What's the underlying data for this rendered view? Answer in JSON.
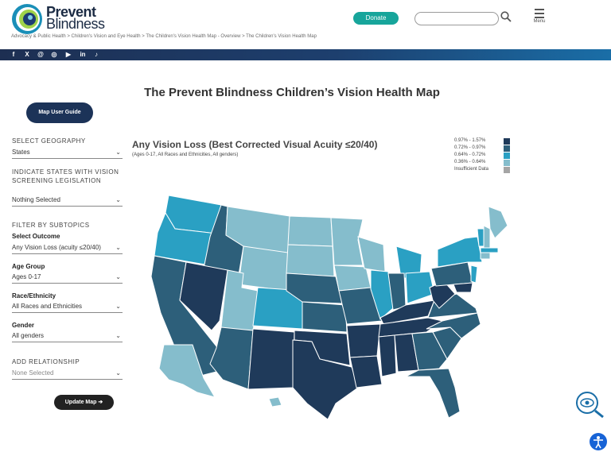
{
  "header": {
    "logo_line1": "Prevent",
    "logo_line2": "Blindness",
    "breadcrumb": "Advocacy & Public Health > Children's Vision and Eye Health > The Children's Vision Health Map - Overview > The Children's Vision Health Map",
    "donate_label": "Donate",
    "search_placeholder": "",
    "menu_label": "Menu"
  },
  "social": {
    "icons": [
      "facebook-icon",
      "x-icon",
      "threads-icon",
      "instagram-icon",
      "youtube-icon",
      "linkedin-icon",
      "tiktok-icon"
    ],
    "glyphs": [
      "f",
      "X",
      "@",
      "◎",
      "▶",
      "in",
      "♪"
    ]
  },
  "page_title": "The Prevent Blindness Children’s Vision Health Map",
  "sidebar": {
    "guide_button": "Map User Guide",
    "geography_label": "SELECT GEOGRAPHY",
    "geography_value": "States",
    "legislation_label_line1": "INDICATE STATES WITH VISION",
    "legislation_label_line2": "SCREENING LEGISLATION",
    "legislation_value": "Nothing Selected",
    "subtopics_label": "FILTER BY SUBTOPICS",
    "outcome_label": "Select Outcome",
    "outcome_value": "Any Vision Loss (acuity ≤20/40)",
    "age_label": "Age Group",
    "age_value": "Ages 0-17",
    "race_label": "Race/Ethnicity",
    "race_value": "All Races and Ethnicities",
    "gender_label": "Gender",
    "gender_value": "All genders",
    "relationship_label": "ADD RELATIONSHIP",
    "relationship_value": "None Selected",
    "update_button": "Update Map ➔"
  },
  "map": {
    "title": "Any Vision Loss (Best Corrected Visual Acuity ≤20/40)",
    "subtitle": "(Ages 0-17, All Races and Ethnicities, All genders)",
    "legend": [
      {
        "label": "0.97% - 1.57%",
        "color": "#1f3a5a"
      },
      {
        "label": "0.72% - 0.97%",
        "color": "#2d5f7a"
      },
      {
        "label": "0.64% - 0.72%",
        "color": "#2aa0c3"
      },
      {
        "label": "0.36% - 0.64%",
        "color": "#85bdcc"
      },
      {
        "label": "Insufficient Data",
        "color": "#a5a5a5"
      }
    ]
  },
  "colors": {
    "brand_navy": "#1c3358",
    "brand_teal": "#17a59b",
    "accessibility_blue": "#1763d6"
  }
}
